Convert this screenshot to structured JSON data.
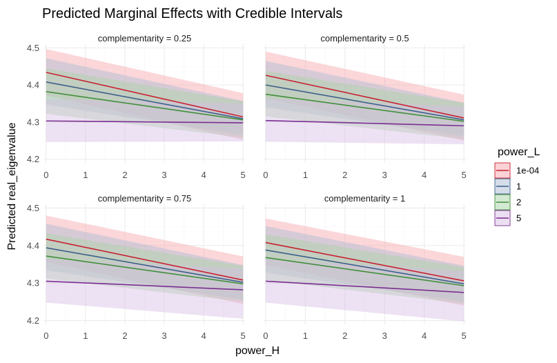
{
  "chart_data": {
    "type": "line",
    "title": "Predicted Marginal Effects with Credible Intervals",
    "xlabel": "power_H",
    "ylabel": "Predicted real_eigenvalue",
    "xlim": [
      -0.05,
      5.05
    ],
    "ylim": [
      4.19,
      4.51
    ],
    "x_ticks": [
      0,
      1,
      2,
      3,
      4,
      5
    ],
    "y_ticks": [
      4.2,
      4.3,
      4.4,
      4.5
    ],
    "y_tick_labels": [
      "4.2",
      "4.3",
      "4.4",
      "4.5"
    ],
    "grid": true,
    "legend": {
      "title": "power_L",
      "position": "right",
      "entries": [
        "1e-04",
        "1",
        "2",
        "5"
      ]
    },
    "series_colors": {
      "1e-04": "#c8202f",
      "1": "#3d5f8a",
      "2": "#3f8f3a",
      "5": "#7a2f91"
    },
    "band_colors": {
      "1e-04": "#f7a6ad",
      "1": "#aabbd3",
      "2": "#a8d3a5",
      "5": "#d7bfe4"
    },
    "panels": [
      {
        "strip_label": "complementarity = 0.25",
        "series": [
          {
            "name": "1e-04",
            "x": [
              0,
              5
            ],
            "y": [
              4.434,
              4.314
            ],
            "lower": [
              4.372,
              4.252
            ],
            "upper": [
              4.497,
              4.378
            ]
          },
          {
            "name": "1",
            "x": [
              0,
              5
            ],
            "y": [
              4.408,
              4.309
            ],
            "lower": [
              4.347,
              4.265
            ],
            "upper": [
              4.472,
              4.357
            ]
          },
          {
            "name": "2",
            "x": [
              0,
              5
            ],
            "y": [
              4.382,
              4.306
            ],
            "lower": [
              4.322,
              4.258
            ],
            "upper": [
              4.445,
              4.356
            ]
          },
          {
            "name": "5",
            "x": [
              0,
              5
            ],
            "y": [
              4.303,
              4.298
            ],
            "lower": [
              4.246,
              4.248
            ],
            "upper": [
              4.362,
              4.35
            ]
          }
        ]
      },
      {
        "strip_label": "complementarity = 0.5",
        "series": [
          {
            "name": "1e-04",
            "x": [
              0,
              5
            ],
            "y": [
              4.426,
              4.311
            ],
            "lower": [
              4.364,
              4.25
            ],
            "upper": [
              4.49,
              4.374
            ]
          },
          {
            "name": "1",
            "x": [
              0,
              5
            ],
            "y": [
              4.4,
              4.306
            ],
            "lower": [
              4.34,
              4.262
            ],
            "upper": [
              4.465,
              4.352
            ]
          },
          {
            "name": "2",
            "x": [
              0,
              5
            ],
            "y": [
              4.375,
              4.302
            ],
            "lower": [
              4.315,
              4.254
            ],
            "upper": [
              4.438,
              4.352
            ]
          },
          {
            "name": "5",
            "x": [
              0,
              5
            ],
            "y": [
              4.304,
              4.29
            ],
            "lower": [
              4.247,
              4.24
            ],
            "upper": [
              4.363,
              4.342
            ]
          }
        ]
      },
      {
        "strip_label": "complementarity = 0.75",
        "series": [
          {
            "name": "1e-04",
            "x": [
              0,
              5
            ],
            "y": [
              4.417,
              4.308
            ],
            "lower": [
              4.356,
              4.244
            ],
            "upper": [
              4.48,
              4.371
            ]
          },
          {
            "name": "1",
            "x": [
              0,
              5
            ],
            "y": [
              4.394,
              4.302
            ],
            "lower": [
              4.334,
              4.256
            ],
            "upper": [
              4.458,
              4.348
            ]
          },
          {
            "name": "2",
            "x": [
              0,
              5
            ],
            "y": [
              4.372,
              4.298
            ],
            "lower": [
              4.312,
              4.25
            ],
            "upper": [
              4.433,
              4.346
            ]
          },
          {
            "name": "5",
            "x": [
              0,
              5
            ],
            "y": [
              4.305,
              4.282
            ],
            "lower": [
              4.248,
              4.205
            ],
            "upper": [
              4.364,
              4.338
            ]
          }
        ]
      },
      {
        "strip_label": "complementarity = 1",
        "series": [
          {
            "name": "1e-04",
            "x": [
              0,
              5
            ],
            "y": [
              4.408,
              4.306
            ],
            "lower": [
              4.348,
              4.24
            ],
            "upper": [
              4.472,
              4.37
            ]
          },
          {
            "name": "1",
            "x": [
              0,
              5
            ],
            "y": [
              4.388,
              4.298
            ],
            "lower": [
              4.328,
              4.25
            ],
            "upper": [
              4.452,
              4.346
            ]
          },
          {
            "name": "2",
            "x": [
              0,
              5
            ],
            "y": [
              4.368,
              4.293
            ],
            "lower": [
              4.308,
              4.245
            ],
            "upper": [
              4.43,
              4.342
            ]
          },
          {
            "name": "5",
            "x": [
              0,
              5
            ],
            "y": [
              4.305,
              4.275
            ],
            "lower": [
              4.248,
              4.198
            ],
            "upper": [
              4.364,
              4.332
            ]
          }
        ]
      }
    ]
  }
}
